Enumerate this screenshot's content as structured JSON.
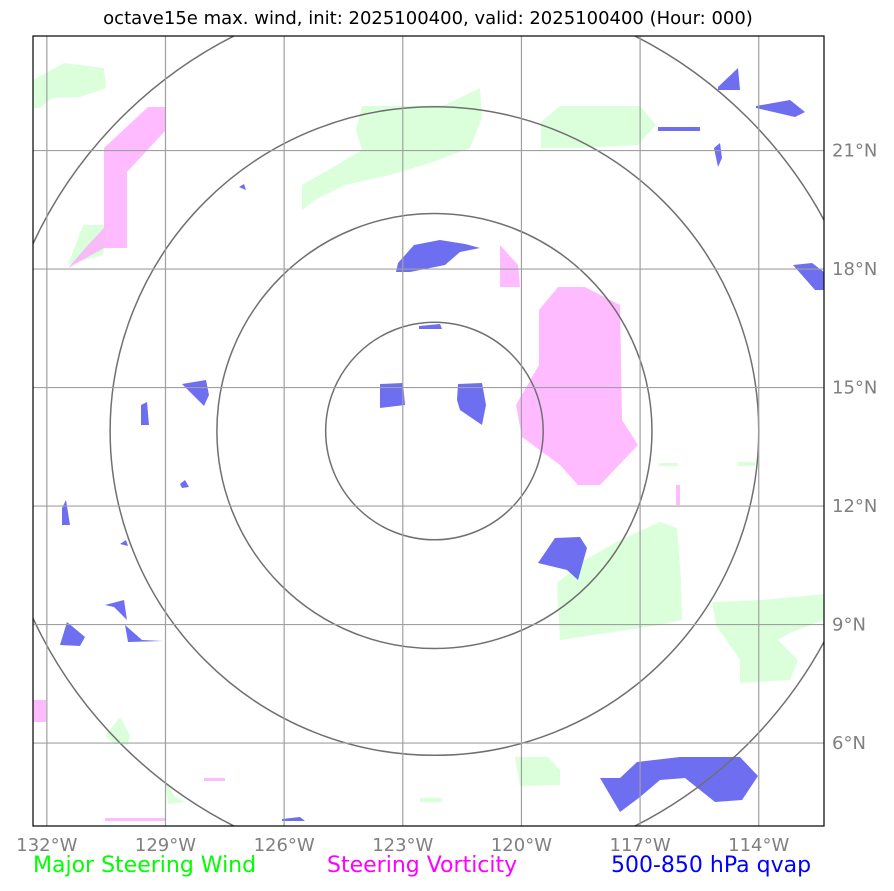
{
  "title": "octave15e max. wind, init: 2025100400, valid: 2025100400 (Hour: 000)",
  "map": {
    "lon_ticks": [
      {
        "value": -132,
        "label": "132°W"
      },
      {
        "value": -129,
        "label": "129°W"
      },
      {
        "value": -126,
        "label": "126°W"
      },
      {
        "value": -123,
        "label": "123°W"
      },
      {
        "value": -120,
        "label": "120°W"
      },
      {
        "value": -117,
        "label": "117°W"
      },
      {
        "value": -114,
        "label": "114°W"
      }
    ],
    "lat_ticks": [
      {
        "value": 21,
        "label": "21°N"
      },
      {
        "value": 18,
        "label": "18°N"
      },
      {
        "value": 15,
        "label": "15°N"
      },
      {
        "value": 12,
        "label": "12°N"
      },
      {
        "value": 9,
        "label": "9°N"
      },
      {
        "value": 6,
        "label": "6°N"
      }
    ],
    "lon_range": [
      -132.35,
      -112.35
    ],
    "lat_range": [
      3.9,
      23.9
    ],
    "center": {
      "lon": -122.2,
      "lat": 13.9
    },
    "range_rings_deg": [
      2.75,
      5.5,
      8.2,
      11.2
    ],
    "colors": {
      "steering_wind": "#00ff00",
      "steering_vorticity": "#ff00ff",
      "qvap": "#0000ff"
    }
  },
  "legend": {
    "wind": "Major Steering Wind",
    "vorticity": "Steering Vorticity",
    "qvap": "500-850 hPa qvap"
  }
}
